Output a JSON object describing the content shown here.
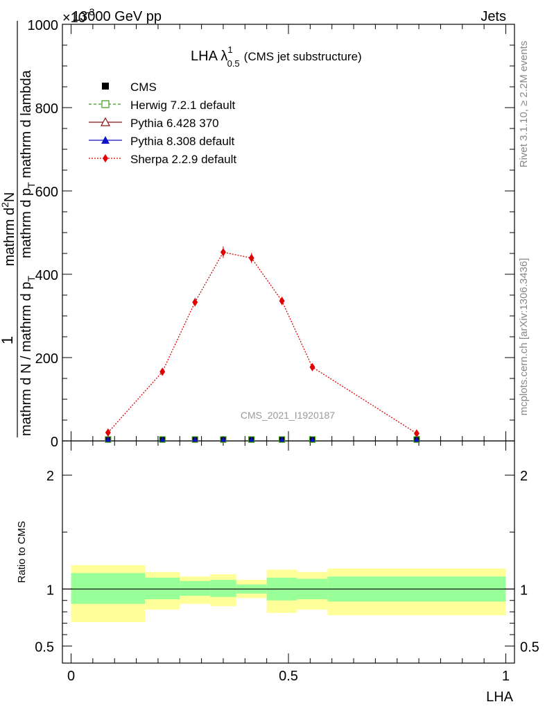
{
  "header": {
    "left": "13000 GeV pp",
    "right": "Jets",
    "exponent": "×10",
    "exponent_power": "-3"
  },
  "side_text": {
    "top": "Rivet 3.1.10, ≥ 2.2M events",
    "bottom": "mcplots.cern.ch [arXiv:1306.3436]"
  },
  "plot_title": {
    "main": "LHA λ",
    "sup": "1",
    "sub": "0.5",
    "suffix": "(CMS jet substructure)"
  },
  "watermark": "CMS_2021_I1920187",
  "colors": {
    "herwig": "#3a9a1a",
    "pythia6": "#8b1010",
    "pythia8": "#1010c8",
    "sherpa": "#e00000",
    "band_inner": "#99ff99",
    "band_outer": "#ffff99"
  },
  "chart_data": [
    {
      "type": "line",
      "ylabel": "1 / mathrm d N / mathrm d p_T mathrm d N / mathrm d p_T mathrm d lambda",
      "ylabel_parts": {
        "numerator_one": "1",
        "denominator": "mathrm d N / mathrm d p",
        "denominator_sub": "T",
        "rhs_a": "mathrm d",
        "rhs_sup": "2",
        "rhs_b": "N",
        "rhs_den": "mathrm d p",
        "rhs_den_sub": "T",
        "rhs_den_tail": "mathrm d lambda"
      },
      "xlim": [
        -0.02,
        1.02
      ],
      "ylim": [
        0,
        1000
      ],
      "y_ticks": [
        0,
        200,
        400,
        600,
        800,
        1000
      ],
      "y_tick_labels": [
        "0",
        "200",
        "400",
        "600",
        "800",
        "1000"
      ],
      "x": [
        0.085,
        0.21,
        0.285,
        0.35,
        0.415,
        0.485,
        0.555,
        0.795
      ],
      "legend": {
        "position": "top-left",
        "entries": [
          "CMS",
          "Herwig 7.2.1 default",
          "Pythia 6.428 370",
          "Pythia 8.308 default",
          "Sherpa 2.2.9 default"
        ]
      },
      "series": [
        {
          "name": "CMS",
          "values": [
            0,
            0,
            0,
            0,
            0,
            0,
            0,
            0
          ]
        },
        {
          "name": "Herwig 7.2.1 default",
          "values": [
            0,
            0,
            0,
            0,
            0,
            0,
            0,
            0
          ]
        },
        {
          "name": "Pythia 6.428 370",
          "values": [
            0,
            0,
            0,
            0,
            0,
            0,
            0,
            0
          ]
        },
        {
          "name": "Pythia 8.308 default",
          "values": [
            0,
            0,
            0,
            0,
            0,
            0,
            0,
            0
          ]
        },
        {
          "name": "Sherpa 2.2.9 default",
          "values": [
            20,
            166,
            333,
            453,
            439,
            336,
            177,
            18
          ],
          "errors": [
            4,
            8,
            10,
            14,
            12,
            10,
            7,
            4
          ]
        }
      ]
    },
    {
      "type": "area",
      "ylabel": "Ratio to CMS",
      "xlabel": "LHA",
      "xlim": [
        -0.02,
        1.02
      ],
      "ylim": [
        0.35,
        2.3
      ],
      "x_ticks": [
        0,
        0.5,
        1
      ],
      "x_tick_labels": [
        "0",
        "0.5",
        "1"
      ],
      "y_ticks": [
        0.5,
        1,
        2
      ],
      "y_tick_labels": [
        "0.5",
        "1",
        "2"
      ],
      "bins": [
        {
          "lo": 0.0,
          "hi": 0.17,
          "inner": [
            0.87,
            1.14
          ],
          "outer": [
            0.71,
            1.21
          ]
        },
        {
          "lo": 0.17,
          "hi": 0.25,
          "inner": [
            0.91,
            1.1
          ],
          "outer": [
            0.82,
            1.15
          ]
        },
        {
          "lo": 0.25,
          "hi": 0.32,
          "inner": [
            0.94,
            1.07
          ],
          "outer": [
            0.87,
            1.11
          ]
        },
        {
          "lo": 0.32,
          "hi": 0.38,
          "inner": [
            0.93,
            1.08
          ],
          "outer": [
            0.85,
            1.13
          ]
        },
        {
          "lo": 0.38,
          "hi": 0.45,
          "inner": [
            0.96,
            1.04
          ],
          "outer": [
            0.92,
            1.08
          ]
        },
        {
          "lo": 0.45,
          "hi": 0.52,
          "inner": [
            0.9,
            1.1
          ],
          "outer": [
            0.79,
            1.17
          ]
        },
        {
          "lo": 0.52,
          "hi": 0.59,
          "inner": [
            0.91,
            1.09
          ],
          "outer": [
            0.82,
            1.15
          ]
        },
        {
          "lo": 0.59,
          "hi": 1.0,
          "inner": [
            0.89,
            1.11
          ],
          "outer": [
            0.77,
            1.18
          ]
        }
      ],
      "reference": 1
    }
  ]
}
